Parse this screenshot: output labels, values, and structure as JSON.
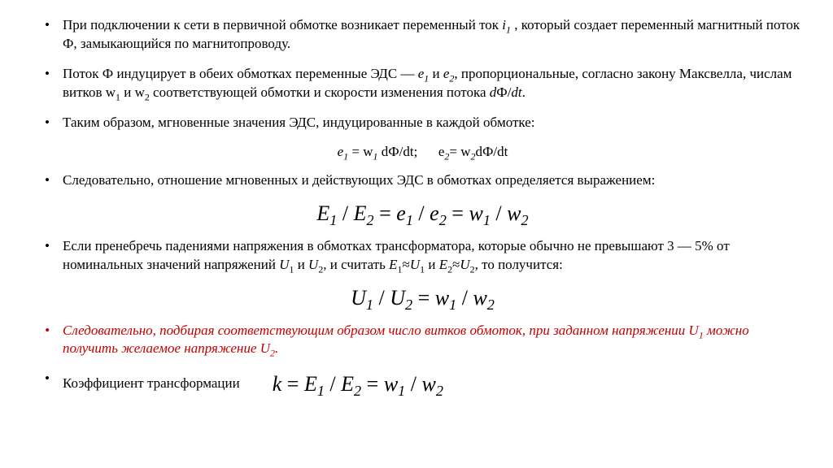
{
  "colors": {
    "text": "#000000",
    "red": "#c00000",
    "background": "#ffffff"
  },
  "typography": {
    "body_fontsize": 17,
    "formula_big_fontsize": 26,
    "font_family": "Times New Roman"
  },
  "bullets": {
    "b1a": "При подключении к сети в первичной обмотке возникает переменный ток ",
    "b1_i1": "i",
    "b1_sub1": "1",
    "b1b": " , который создает переменный магнитный поток Ф, замыкающийся по магнитопроводу.",
    "b2a": " Поток Ф индуцирует в обеих обмотках переменные ЭДС — ",
    "b2_e1": "e",
    "b2_sub1": "1",
    "b2_and": " и ",
    "b2_e2": "e",
    "b2_sub2": "2",
    "b2b": ", пропорциональные, согласно закону Максвелла, числам витков w",
    "b2_subw1": "1",
    "b2c": " и w",
    "b2_subw2": "2",
    "b2d": " соответствующей обмотки и скорости изменения потока ",
    "b2_dphi": "d",
    "b2_phi": "Ф/",
    "b2_dt": "dt",
    "b2_dot": ".",
    "b3": "Таким образом, мгновенные значения ЭДС, индуцированные в каждой обмотке:",
    "formula1_e1": "e",
    "formula1_s1": "1",
    "formula1_eq1": " = w",
    "formula1_s1b": "1",
    "formula1_mid": " dФ/dt;      e",
    "formula1_s2": "2",
    "formula1_eq2": "= w",
    "formula1_s2b": "2",
    "formula1_end": "dФ/dt",
    "b4": "Следовательно, отношение мгновенных и действующих ЭДС в обмотках определяется выражением:",
    "formula2": "E₁ / E₂ = e₁ / e₂ = w₁ / w₂",
    "formula2_E1": "E",
    "formula2_sub1": "1",
    "formula2_slash1": " / ",
    "formula2_E2": "E",
    "formula2_sub2": "2",
    "formula2_eq1": " = ",
    "formula2_e1": "e",
    "formula2_sub3": "1",
    "formula2_slash2": " / ",
    "formula2_e2": "e",
    "formula2_sub4": "2",
    "formula2_eq2": " = ",
    "formula2_w1": "w",
    "formula2_sub5": "1",
    "formula2_slash3": " / ",
    "formula2_w2": "w",
    "formula2_sub6": "2",
    "b5a": "Если пренебречь падениями напряжения в обмотках трансформатора, которые обычно не превышают 3 — 5% от номинальных значений напряжений ",
    "b5_U1": "U",
    "b5_s1": "1",
    "b5_and": " и ",
    "b5_U2": "U",
    "b5_s2": "2",
    "b5_mid": ", и считать ",
    "b5_E1": "E",
    "b5_s3": "1",
    "b5_approx1": "≈",
    "b5_U1b": "U",
    "b5_s4": "1",
    "b5_and2": " и ",
    "b5_E2": "E",
    "b5_s5": "2",
    "b5_approx2": "≈",
    "b5_U2b": "U",
    "b5_s6": "2",
    "b5_end": ", то получится:",
    "formula3_U1": "U",
    "formula3_s1": "1",
    "formula3_sl1": " / ",
    "formula3_U2": "U",
    "formula3_s2": "2",
    "formula3_eq": " = ",
    "formula3_w1": "w",
    "formula3_s3": "1",
    "formula3_sl2": " / ",
    "formula3_w2": "w",
    "formula3_s4": "2",
    "b6a": "Следовательно, подбирая соответствующим образом число витков обмоток, при заданном напряжении U",
    "b6_s1": "1",
    "b6b": " можно получить желаемое напряжение U",
    "b6_s2": "2",
    "b6c": ".",
    "b7": "Коэффициент трансформации",
    "formula4_k": "k",
    "formula4_eq1": " = ",
    "formula4_E1": "E",
    "formula4_s1": "1",
    "formula4_sl1": " / ",
    "formula4_E2": "E",
    "formula4_s2": "2",
    "formula4_eq2": " = ",
    "formula4_w1": "w",
    "formula4_s3": "1",
    "formula4_sl2": " / ",
    "formula4_w2": "w",
    "formula4_s4": "2"
  }
}
